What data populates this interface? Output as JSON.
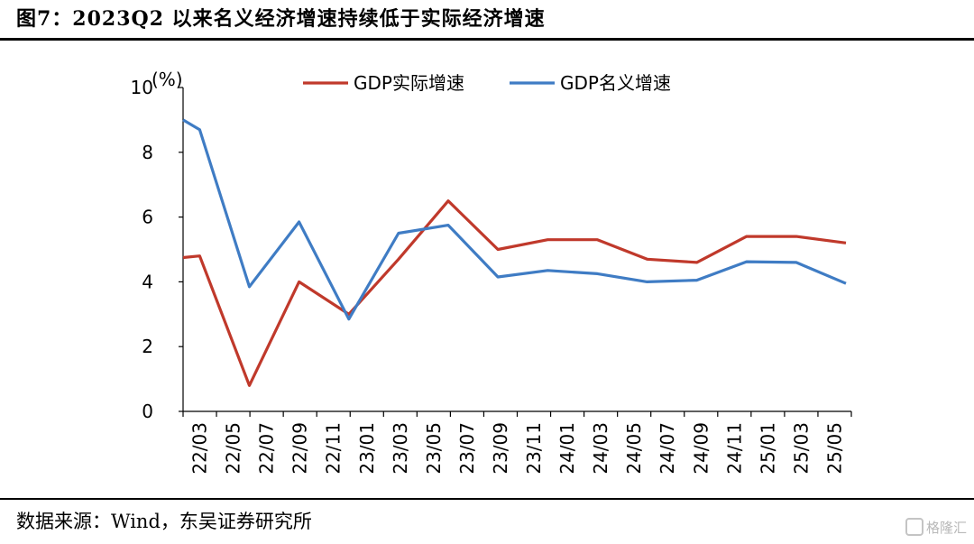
{
  "header": {
    "title": "图7：2023Q2 以来名义经济增速持续低于实际经济增速"
  },
  "footer": {
    "source": "数据来源：Wind，东吴证券研究所",
    "watermark": "格隆汇"
  },
  "chart_data": {
    "type": "line",
    "ylabel_unit": "(%)",
    "ylim": [
      0,
      10
    ],
    "yticks": [
      0,
      2,
      4,
      6,
      8,
      10
    ],
    "grid": false,
    "legend_position": "top",
    "x": [
      "22/02",
      "22/03",
      "22/04",
      "22/05",
      "22/06",
      "22/07",
      "22/08",
      "22/09",
      "22/10",
      "22/11",
      "22/12",
      "23/01",
      "23/02",
      "23/03",
      "23/04",
      "23/05",
      "23/06",
      "23/07",
      "23/08",
      "23/09",
      "23/10",
      "23/11",
      "23/12",
      "24/01",
      "24/02",
      "24/03",
      "24/04",
      "24/05",
      "24/06",
      "24/07",
      "24/08",
      "24/09",
      "24/10",
      "24/11",
      "24/12",
      "25/01",
      "25/02",
      "25/03",
      "25/04",
      "25/05",
      "25/06"
    ],
    "xtick_labels": [
      "22/03",
      "22/05",
      "22/07",
      "22/09",
      "22/11",
      "23/01",
      "23/03",
      "23/05",
      "23/07",
      "23/09",
      "23/11",
      "24/01",
      "24/03",
      "24/05",
      "24/07",
      "24/09",
      "24/11",
      "25/01",
      "25/03",
      "25/05"
    ],
    "series": [
      {
        "name": "GDP实际增速",
        "color": "#c0392b",
        "values": [
          4.75,
          4.8,
          null,
          null,
          0.8,
          null,
          null,
          4.0,
          null,
          null,
          3.0,
          null,
          null,
          4.7,
          null,
          null,
          6.5,
          null,
          null,
          5.0,
          null,
          null,
          5.3,
          null,
          null,
          5.3,
          null,
          null,
          4.7,
          null,
          null,
          4.6,
          null,
          null,
          5.4,
          null,
          null,
          5.4,
          null,
          null,
          5.2
        ]
      },
      {
        "name": "GDP名义增速",
        "color": "#3f7cc4",
        "values": [
          9.0,
          8.7,
          null,
          null,
          3.85,
          null,
          null,
          5.85,
          null,
          null,
          2.85,
          null,
          null,
          5.5,
          null,
          null,
          5.75,
          null,
          null,
          4.15,
          null,
          null,
          4.35,
          null,
          null,
          4.25,
          null,
          null,
          4.0,
          null,
          null,
          4.05,
          null,
          null,
          4.62,
          null,
          null,
          4.6,
          null,
          null,
          3.95
        ]
      }
    ]
  }
}
